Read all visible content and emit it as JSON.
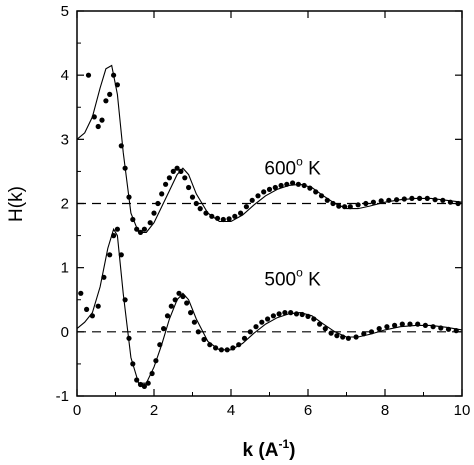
{
  "chart_data": {
    "type": "scatter",
    "xlabel_main": "k (A",
    "xlabel_sup": "-1",
    "xlabel_end": ")",
    "ylabel": "H(k)",
    "xlim": [
      0,
      10
    ],
    "ylim": [
      -1,
      5
    ],
    "xticks": [
      "0",
      "2",
      "4",
      "6",
      "8",
      "10"
    ],
    "yticks": [
      "-1",
      "0",
      "1",
      "2",
      "3",
      "4",
      "5"
    ],
    "grid": false,
    "annotations": [
      {
        "id": "t600",
        "main": "600",
        "sup": "o",
        "end": " K",
        "x": 5.6,
        "y": 2.45
      },
      {
        "id": "t500",
        "main": "500",
        "sup": "o",
        "end": " K",
        "x": 5.6,
        "y": 0.72
      }
    ],
    "reference_lines": [
      {
        "name": "baseline-600K",
        "y": 2,
        "style": "dashed"
      },
      {
        "name": "baseline-500K",
        "y": 0,
        "style": "dashed"
      }
    ],
    "series": [
      {
        "kind": "points",
        "x": [
          0.3,
          0.45,
          0.55,
          0.65,
          0.75,
          0.85,
          0.95,
          1.05,
          1.15,
          1.25,
          1.35,
          1.45,
          1.55,
          1.65,
          1.75,
          1.9,
          2.0,
          2.1,
          2.2,
          2.3,
          2.4,
          2.5,
          2.6,
          2.7,
          2.8,
          2.9,
          3.0,
          3.1,
          3.2,
          3.35,
          3.5,
          3.65,
          3.8,
          3.95,
          4.1,
          4.25,
          4.4,
          4.55,
          4.7,
          4.85,
          5.0,
          5.15,
          5.3,
          5.45,
          5.6,
          5.75,
          5.9,
          6.05,
          6.2,
          6.35,
          6.5,
          6.65,
          6.8,
          6.95,
          7.1,
          7.3,
          7.5,
          7.7,
          7.9,
          8.1,
          8.3,
          8.5,
          8.7,
          8.9,
          9.1,
          9.3,
          9.5,
          9.7,
          9.9
        ],
        "y": [
          4.0,
          3.35,
          3.2,
          3.3,
          3.6,
          3.7,
          4.0,
          3.85,
          2.9,
          2.55,
          2.1,
          1.75,
          1.6,
          1.55,
          1.6,
          1.7,
          1.85,
          2.0,
          2.15,
          2.3,
          2.4,
          2.5,
          2.55,
          2.5,
          2.4,
          2.25,
          2.1,
          2.0,
          1.92,
          1.85,
          1.8,
          1.77,
          1.75,
          1.76,
          1.8,
          1.85,
          1.95,
          2.05,
          2.12,
          2.18,
          2.22,
          2.25,
          2.28,
          2.3,
          2.32,
          2.3,
          2.28,
          2.24,
          2.18,
          2.12,
          2.05,
          2.0,
          1.96,
          1.95,
          1.95,
          1.98,
          2.0,
          2.02,
          2.04,
          2.05,
          2.06,
          2.07,
          2.08,
          2.08,
          2.08,
          2.06,
          2.05,
          2.02,
          2.0
        ]
      },
      {
        "kind": "curve",
        "x": [
          0.0,
          0.2,
          0.4,
          0.6,
          0.75,
          0.9,
          1.05,
          1.2,
          1.4,
          1.6,
          1.8,
          2.0,
          2.2,
          2.4,
          2.6,
          2.75,
          2.9,
          3.1,
          3.4,
          3.7,
          4.0,
          4.3,
          4.6,
          4.9,
          5.2,
          5.5,
          5.8,
          6.1,
          6.4,
          6.7,
          7.0,
          7.3,
          7.6,
          8.0,
          8.4,
          8.8,
          9.2,
          9.6,
          10.0
        ],
        "y": [
          3.0,
          3.1,
          3.35,
          3.8,
          4.1,
          4.15,
          3.7,
          2.8,
          1.85,
          1.55,
          1.55,
          1.7,
          1.95,
          2.2,
          2.45,
          2.55,
          2.45,
          2.15,
          1.85,
          1.72,
          1.72,
          1.82,
          1.98,
          2.12,
          2.22,
          2.28,
          2.3,
          2.25,
          2.12,
          2.0,
          1.92,
          1.92,
          1.96,
          2.02,
          2.06,
          2.08,
          2.08,
          2.05,
          2.02
        ]
      },
      {
        "kind": "points",
        "x": [
          0.1,
          0.25,
          0.4,
          0.55,
          0.7,
          0.85,
          0.95,
          1.05,
          1.15,
          1.25,
          1.35,
          1.45,
          1.55,
          1.65,
          1.75,
          1.85,
          1.95,
          2.05,
          2.15,
          2.25,
          2.35,
          2.45,
          2.55,
          2.65,
          2.75,
          2.85,
          2.95,
          3.05,
          3.15,
          3.3,
          3.45,
          3.6,
          3.75,
          3.9,
          4.05,
          4.2,
          4.35,
          4.5,
          4.65,
          4.8,
          4.95,
          5.1,
          5.25,
          5.4,
          5.55,
          5.7,
          5.85,
          6.0,
          6.15,
          6.3,
          6.45,
          6.6,
          6.75,
          6.9,
          7.05,
          7.25,
          7.45,
          7.65,
          7.85,
          8.05,
          8.25,
          8.45,
          8.65,
          8.85,
          9.05,
          9.25,
          9.45,
          9.65,
          9.85
        ],
        "y": [
          0.6,
          0.35,
          0.25,
          0.4,
          0.85,
          1.2,
          1.5,
          1.6,
          1.2,
          0.5,
          -0.1,
          -0.5,
          -0.75,
          -0.82,
          -0.85,
          -0.8,
          -0.65,
          -0.45,
          -0.2,
          0.05,
          0.25,
          0.4,
          0.5,
          0.6,
          0.55,
          0.45,
          0.3,
          0.15,
          0.0,
          -0.12,
          -0.2,
          -0.25,
          -0.28,
          -0.28,
          -0.25,
          -0.2,
          -0.1,
          0.0,
          0.08,
          0.15,
          0.2,
          0.25,
          0.28,
          0.3,
          0.3,
          0.28,
          0.27,
          0.24,
          0.2,
          0.12,
          0.05,
          -0.02,
          -0.06,
          -0.08,
          -0.1,
          -0.08,
          -0.03,
          0.0,
          0.05,
          0.08,
          0.1,
          0.12,
          0.12,
          0.12,
          0.1,
          0.08,
          0.06,
          0.04,
          0.02
        ]
      },
      {
        "kind": "curve",
        "x": [
          0.0,
          0.2,
          0.4,
          0.6,
          0.8,
          0.95,
          1.05,
          1.2,
          1.4,
          1.6,
          1.8,
          2.0,
          2.2,
          2.4,
          2.6,
          2.75,
          2.9,
          3.1,
          3.4,
          3.7,
          4.0,
          4.3,
          4.6,
          4.9,
          5.2,
          5.5,
          5.8,
          6.1,
          6.4,
          6.7,
          7.0,
          7.3,
          7.6,
          8.0,
          8.4,
          8.8,
          9.2,
          9.6,
          10.0
        ],
        "y": [
          0.05,
          0.15,
          0.3,
          0.7,
          1.3,
          1.6,
          1.5,
          0.6,
          -0.4,
          -0.8,
          -0.8,
          -0.55,
          -0.2,
          0.2,
          0.5,
          0.6,
          0.5,
          0.2,
          -0.15,
          -0.28,
          -0.28,
          -0.18,
          -0.02,
          0.12,
          0.22,
          0.28,
          0.3,
          0.25,
          0.12,
          0.0,
          -0.08,
          -0.08,
          -0.04,
          0.03,
          0.08,
          0.1,
          0.1,
          0.07,
          0.03
        ]
      }
    ]
  }
}
